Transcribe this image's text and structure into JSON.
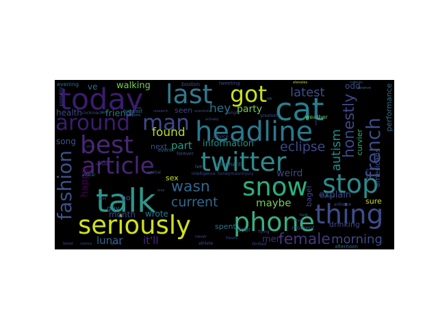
{
  "wordcloud": {
    "background": "#000000",
    "palette": "viridis",
    "words": [
      {
        "text": "today",
        "color": "#3b1c6f"
      },
      {
        "text": "cat",
        "color": "#27808e"
      },
      {
        "text": "last",
        "color": "#2f7a8e"
      },
      {
        "text": "got",
        "color": "#c7e020"
      },
      {
        "text": "headline",
        "color": "#2a788e"
      },
      {
        "text": "around",
        "color": "#3b1c6f"
      },
      {
        "text": "man",
        "color": "#3e4a89"
      },
      {
        "text": "best",
        "color": "#482776"
      },
      {
        "text": "article",
        "color": "#482575"
      },
      {
        "text": "twitter",
        "color": "#2d8a8d"
      },
      {
        "text": "snow",
        "color": "#2ab07f"
      },
      {
        "text": "stop",
        "color": "#2a8c8c"
      },
      {
        "text": "talk",
        "color": "#2d978b"
      },
      {
        "text": "seriously",
        "color": "#d0e11c"
      },
      {
        "text": "phone",
        "color": "#3aae82"
      },
      {
        "text": "thing",
        "color": "#3e4c8a"
      },
      {
        "text": "fashion",
        "color": "#3b518b"
      },
      {
        "text": "french",
        "color": "#3e4a89"
      },
      {
        "text": "honestly",
        "color": "#3f4788"
      },
      {
        "text": "autism",
        "color": "#228c8d"
      },
      {
        "text": "female",
        "color": "#45377f"
      },
      {
        "text": "morning",
        "color": "#3e4a89"
      },
      {
        "text": "wasn",
        "color": "#31678e"
      },
      {
        "text": "current",
        "color": "#2f6b8e"
      },
      {
        "text": "hey",
        "color": "#2a778e"
      },
      {
        "text": "party",
        "color": "#6ccd5a"
      },
      {
        "text": "latest",
        "color": "#3c4f8a"
      },
      {
        "text": "found",
        "color": "#b8de29"
      },
      {
        "text": "part",
        "color": "#1fa088"
      },
      {
        "text": "eclipse",
        "color": "#3f4889"
      },
      {
        "text": "information",
        "color": "#20928c"
      },
      {
        "text": "maybe",
        "color": "#76d153"
      },
      {
        "text": "weird",
        "color": "#404688"
      },
      {
        "text": "explain",
        "color": "#3e4a89"
      },
      {
        "text": "lunar",
        "color": "#31678e"
      },
      {
        "text": "it'll",
        "color": "#472c7a"
      },
      {
        "text": "men",
        "color": "#472e7c"
      },
      {
        "text": "walking",
        "color": "#73d056"
      },
      {
        "text": "happy",
        "color": "#440154"
      },
      {
        "text": "friend",
        "color": "#2c728e"
      },
      {
        "text": "song",
        "color": "#3b528b"
      },
      {
        "text": "health",
        "color": "#3e4b8a"
      },
      {
        "text": "month",
        "color": "#3e4a89"
      },
      {
        "text": "wrote",
        "color": "#29798e"
      },
      {
        "text": "seen",
        "color": "#3f4788"
      },
      {
        "text": "next",
        "color": "#3d4e8a"
      },
      {
        "text": "go",
        "color": "#3b528b"
      },
      {
        "text": "sex",
        "color": "#c8e020"
      },
      {
        "text": "guy",
        "color": "#2c728e"
      },
      {
        "text": "ve",
        "color": "#2c728e"
      },
      {
        "text": "odd",
        "color": "#3e4a89"
      },
      {
        "text": "bagel",
        "color": "#404588"
      },
      {
        "text": "sure",
        "color": "#c8e020"
      },
      {
        "text": "curvier",
        "color": "#35b779"
      },
      {
        "text": "americans",
        "color": "#39568c"
      },
      {
        "text": "performance",
        "color": "#2c728e"
      },
      {
        "text": "drinking",
        "color": "#3f4788"
      },
      {
        "text": "spent",
        "color": "#2a788e"
      },
      {
        "text": "moment",
        "color": "#3b528b"
      },
      {
        "text": "door",
        "color": "#3b528b"
      },
      {
        "text": "weather",
        "color": "#6ccd5a"
      },
      {
        "text": "evening",
        "color": "#2c728e"
      },
      {
        "text": "boston",
        "color": "#3b528b"
      },
      {
        "text": "tweeting",
        "color": "#3e4a89"
      },
      {
        "text": "forecast",
        "color": "#2c728e"
      },
      {
        "text": "elephant",
        "color": "#2c728e"
      },
      {
        "text": "forever",
        "color": "#3b528b"
      },
      {
        "text": "advice",
        "color": "#3e4a89"
      },
      {
        "text": "afternoon",
        "color": "#2c728e"
      },
      {
        "text": "thanks",
        "color": "#3b528b"
      },
      {
        "text": "flying",
        "color": "#3e4a89"
      },
      {
        "text": "hours",
        "color": "#3b528b"
      },
      {
        "text": "event",
        "color": "#2c728e"
      },
      {
        "text": "possibly",
        "color": "#3e4a89"
      },
      {
        "text": "delight",
        "color": "#3e4a89"
      },
      {
        "text": "ive",
        "color": "#2c728e"
      },
      {
        "text": "greatest",
        "color": "#3b528b"
      },
      {
        "text": "intelligence",
        "color": "#3b528b"
      },
      {
        "text": "honeymooninjury",
        "color": "#3e4a89"
      },
      {
        "text": "spatial",
        "color": "#3b528b"
      },
      {
        "text": "never",
        "color": "#3e4a89"
      },
      {
        "text": "athlete",
        "color": "#3b528b"
      },
      {
        "text": "thrilled",
        "color": "#3e4a89"
      },
      {
        "text": "elevates",
        "color": "#bddf26"
      },
      {
        "text": "rodents",
        "color": "#3b528b"
      },
      {
        "text": "deserve",
        "color": "#2c728e"
      },
      {
        "text": "share",
        "color": "#3e4a89"
      },
      {
        "text": "husk",
        "color": "#2c728e"
      },
      {
        "text": "airborne",
        "color": "#3b528b"
      },
      {
        "text": "cockroach",
        "color": "#3b528b"
      },
      {
        "text": "sports",
        "color": "#2c728e"
      },
      {
        "text": "continuing",
        "color": "#3e4a89"
      },
      {
        "text": "starting",
        "color": "#3b528b"
      },
      {
        "text": "skill",
        "color": "#2c728e"
      },
      {
        "text": "hist",
        "color": "#3b528b"
      },
      {
        "text": "research",
        "color": "#3e4a89"
      },
      {
        "text": "scientists",
        "color": "#3b528b"
      },
      {
        "text": "actually",
        "color": "#3b528b"
      },
      {
        "text": "avatar",
        "color": "#2c728e"
      },
      {
        "text": "remote",
        "color": "#3e4a89"
      },
      {
        "text": "bored",
        "color": "#3b528b"
      },
      {
        "text": "comics",
        "color": "#3b528b"
      },
      {
        "text": "love",
        "color": "#3b528b"
      },
      {
        "text": "grad",
        "color": "#3e4a89"
      },
      {
        "text": "time",
        "color": "#3b528b"
      },
      {
        "text": "wink",
        "color": "#3e4a89"
      },
      {
        "text": "gonna",
        "color": "#3e4a89"
      },
      {
        "text": "idk",
        "color": "#2c728e"
      }
    ]
  }
}
